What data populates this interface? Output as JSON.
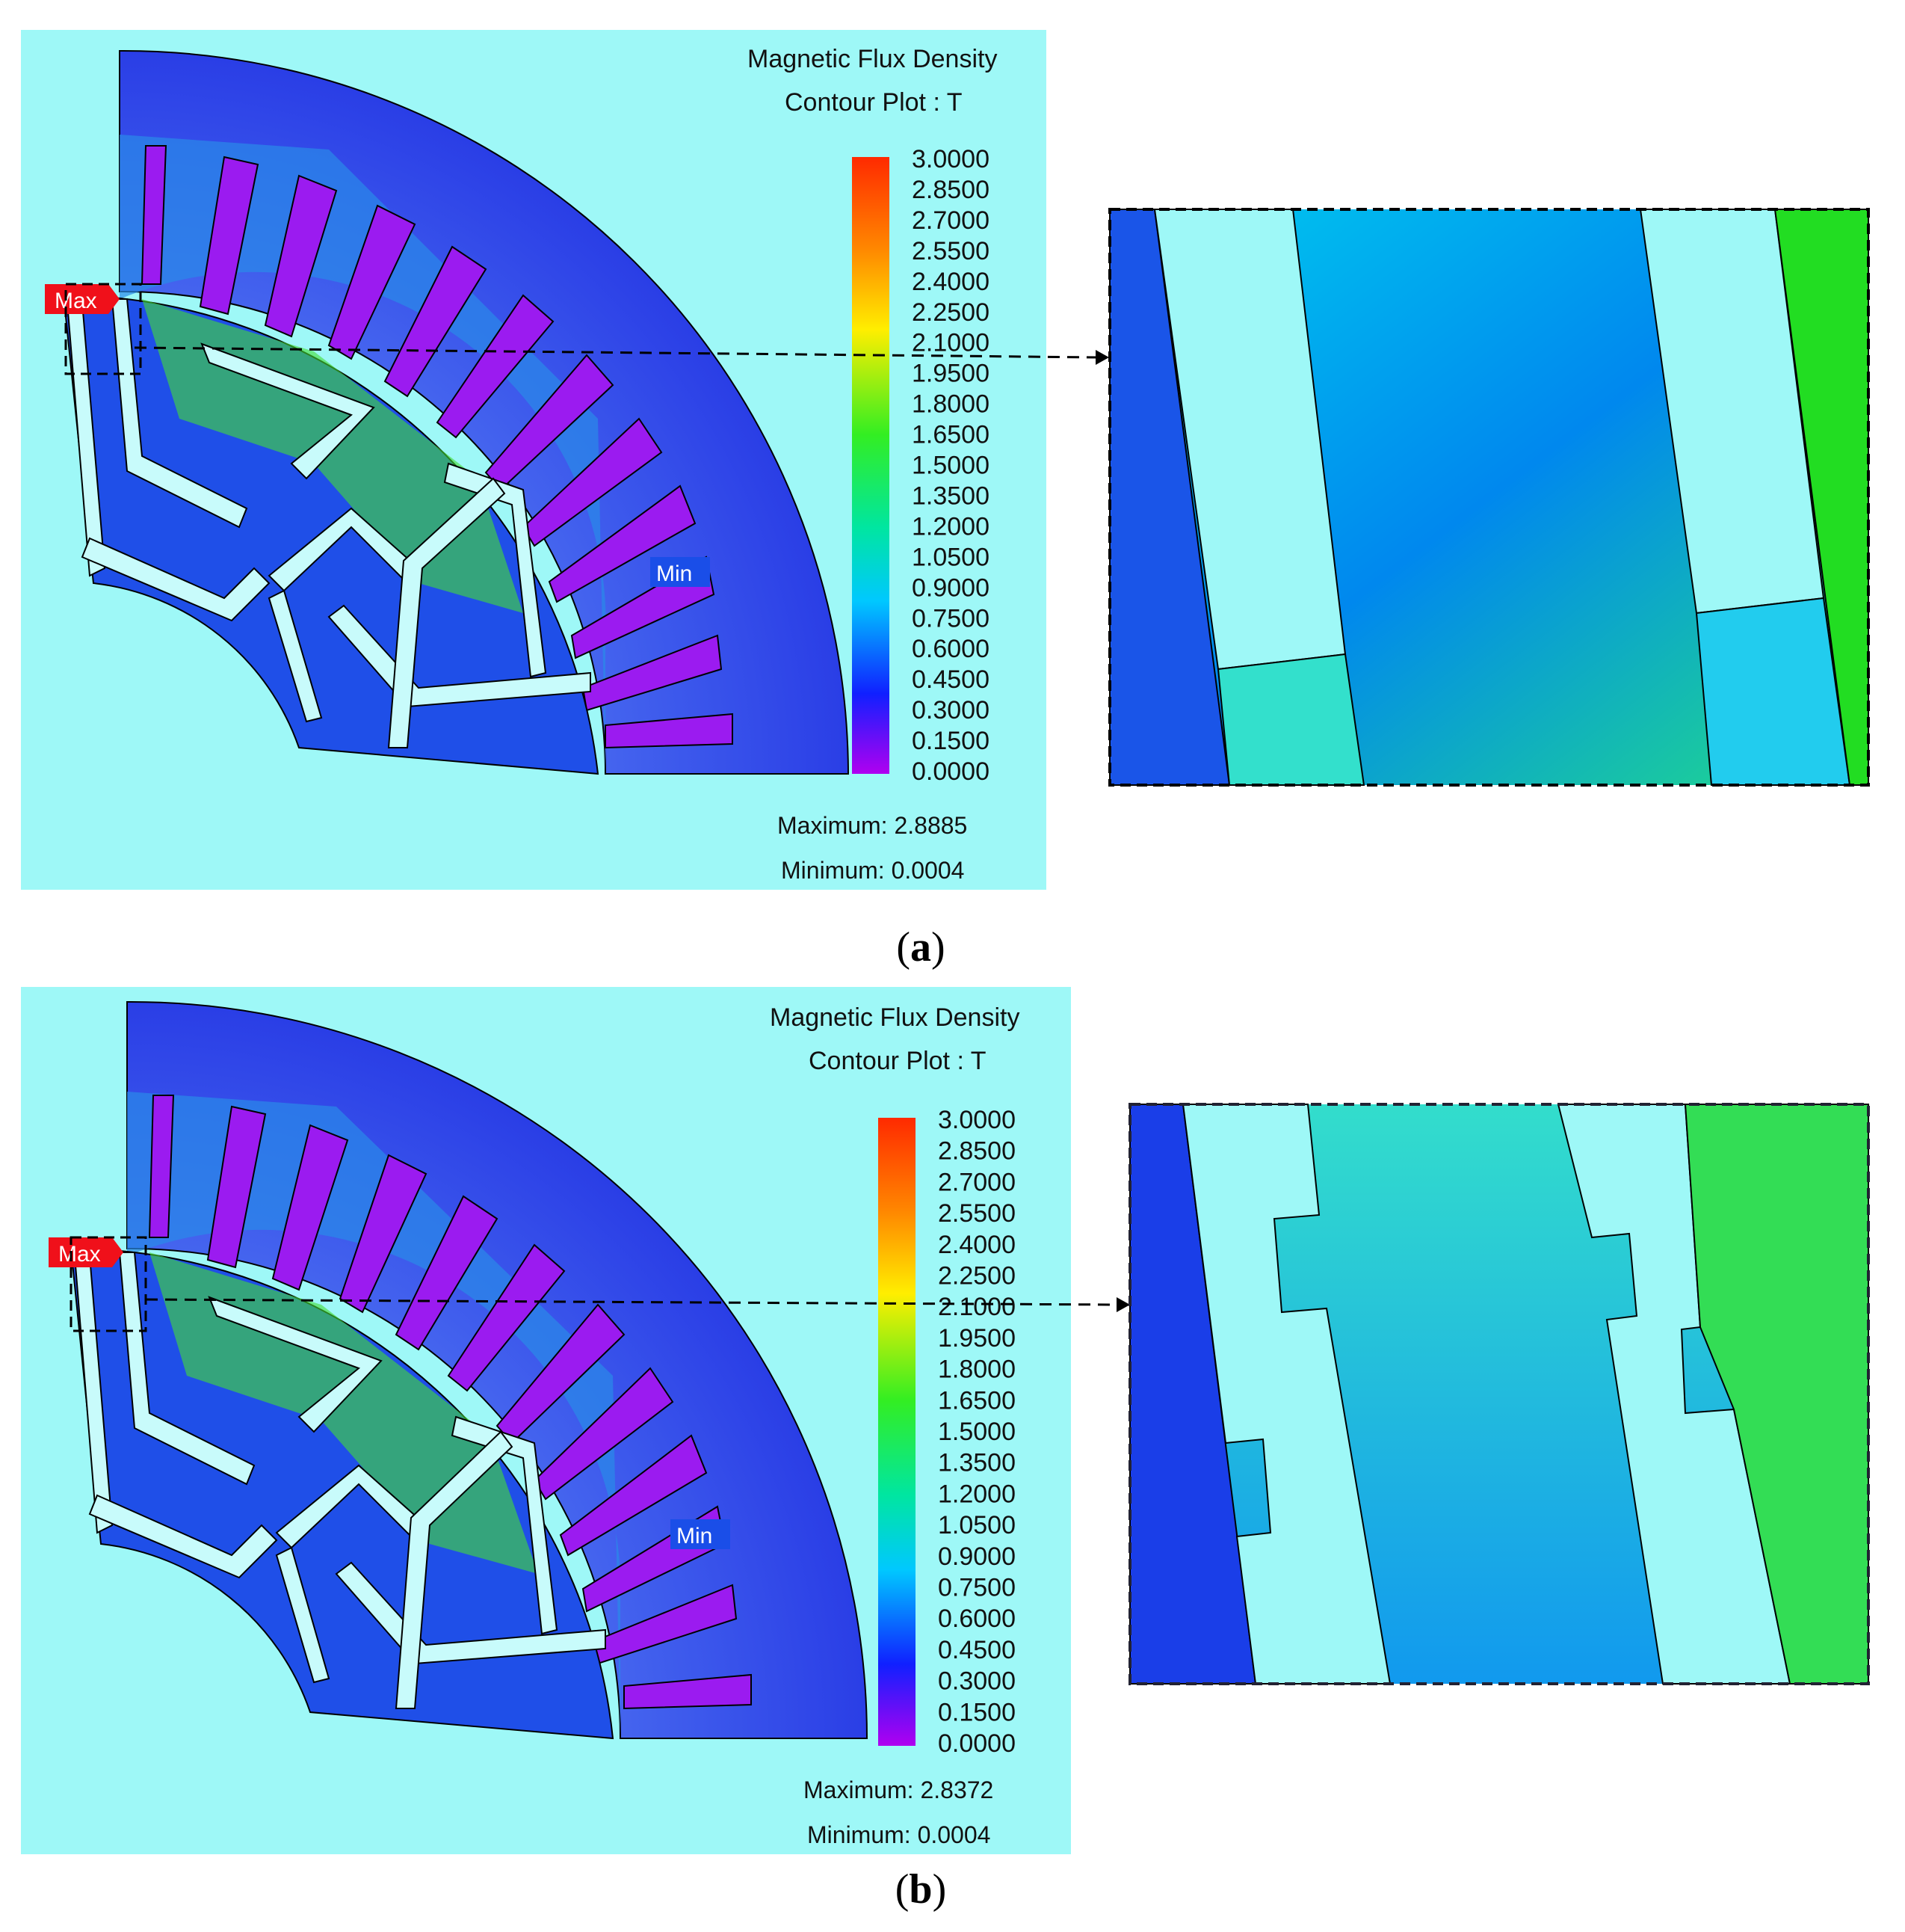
{
  "panels": [
    {
      "caption_letter": "a",
      "plot_title_line1": "Magnetic Flux Density",
      "plot_title_line2": "Contour Plot : T",
      "legend_ticks": [
        "3.0000",
        "2.8500",
        "2.7000",
        "2.5500",
        "2.4000",
        "2.2500",
        "2.1000",
        "1.9500",
        "1.8000",
        "1.6500",
        "1.5000",
        "1.3500",
        "1.2000",
        "1.0500",
        "0.9000",
        "0.7500",
        "0.6000",
        "0.4500",
        "0.3000",
        "0.1500",
        "0.0000"
      ],
      "max_marker": "Max",
      "min_marker": "Min",
      "maximum_text": "Maximum: 2.8885",
      "minimum_text": "Minimum: 0.0004"
    },
    {
      "caption_letter": "b",
      "plot_title_line1": "Magnetic Flux Density",
      "plot_title_line2": "Contour Plot : T",
      "legend_ticks": [
        "3.0000",
        "2.8500",
        "2.7000",
        "2.5500",
        "2.4000",
        "2.2500",
        "2.1000",
        "1.9500",
        "1.8000",
        "1.6500",
        "1.5000",
        "1.3500",
        "1.2000",
        "1.0500",
        "0.9000",
        "0.7500",
        "0.6000",
        "0.4500",
        "0.3000",
        "0.1500",
        "0.0000"
      ],
      "max_marker": "Max",
      "min_marker": "Min",
      "maximum_text": "Maximum: 2.8372",
      "minimum_text": "Minimum: 0.0004"
    }
  ],
  "colors": {
    "background": "#9ef8f7",
    "stator_yoke": "#1f3fe8",
    "slot": "#9b1bf0",
    "barrier": "#c8fbfb",
    "core_green": "#33dd22"
  }
}
